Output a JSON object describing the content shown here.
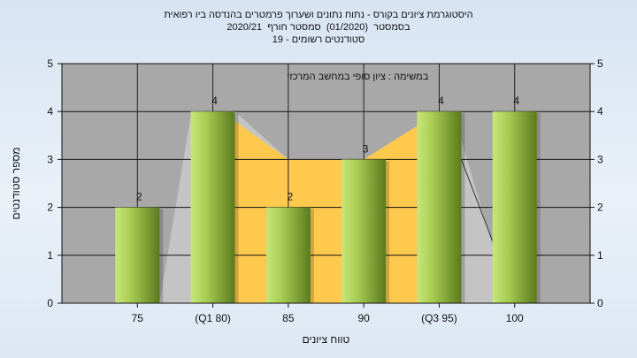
{
  "header": {
    "line1": "היסטוגרמת ציונים בקורס - נתוח נתונים ושערוך פרמטרים בהנדסה ביו רפואית",
    "line2": "בסמסטר  (01/2020)  סמסטר חורף  2020/21",
    "line3": "סטודנטים רשומים - 19"
  },
  "chart_data": {
    "type": "bar",
    "title": "",
    "subtitle": "במשימה : ציון סופי במחשב המרכזי",
    "xlabel": "טווח ציונים",
    "ylabel": "מספר סטודנטים",
    "categories": [
      "75",
      "(Q1 80)",
      "85",
      "90",
      "(Q3 95)",
      "100"
    ],
    "values": [
      2,
      4,
      2,
      3,
      4,
      4
    ],
    "ylim": [
      0,
      5
    ],
    "yticks": [
      0,
      1,
      2,
      3,
      4,
      5
    ],
    "grid": true,
    "colors": {
      "plot_bg": "#a8a8a8",
      "bar_light": "#c8e67a",
      "bar_dark": "#5c7a1e",
      "area_band": "#ffc94d",
      "area_gray": "#c4c4c4"
    }
  }
}
